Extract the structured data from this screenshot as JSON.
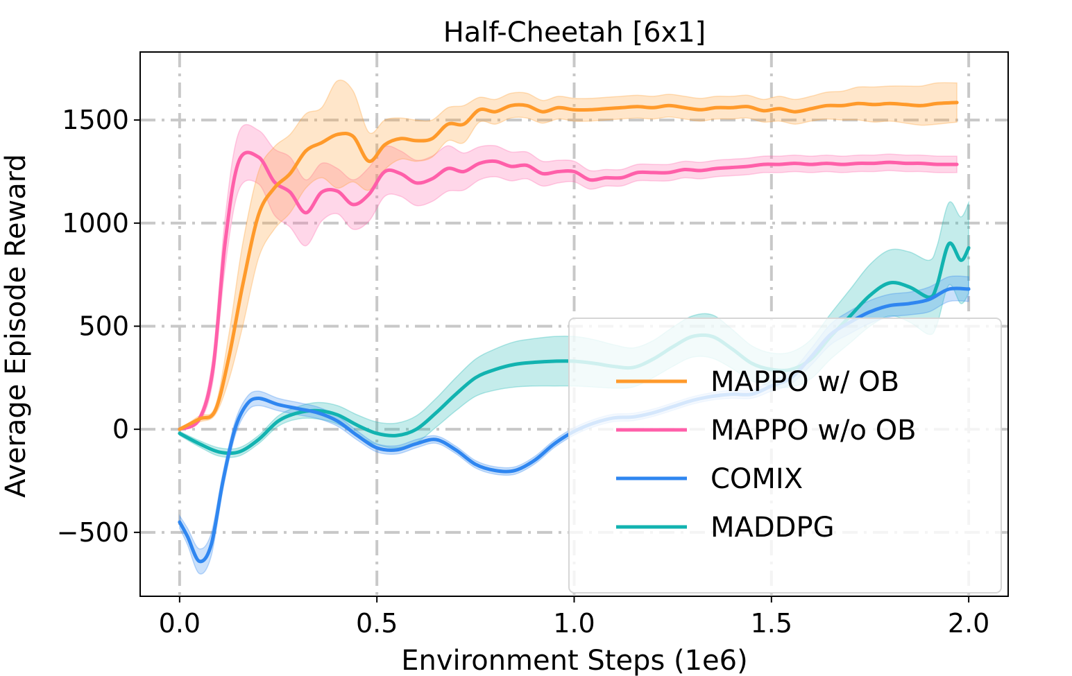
{
  "chart_data": {
    "type": "line",
    "title": "Half-Cheetah [6x1]",
    "xlabel": "Environment Steps (1e6)",
    "ylabel": "Average Episode Reward",
    "xlim": [
      -0.1,
      2.1
    ],
    "ylim": [
      -810,
      1830
    ],
    "xticks": [
      0.0,
      0.5,
      1.0,
      1.5,
      2.0
    ],
    "xtick_labels": [
      "0.0",
      "0.5",
      "1.0",
      "1.5",
      "2.0"
    ],
    "yticks": [
      -500,
      0,
      500,
      1000,
      1500
    ],
    "ytick_labels": [
      "−500",
      "0",
      "500",
      "1000",
      "1500"
    ],
    "grid": true,
    "legend_position": "lower right",
    "series": [
      {
        "name": "MAPPO w/ OB",
        "color": "#ff9a2b",
        "x": [
          0.0,
          0.05,
          0.09,
          0.125,
          0.16,
          0.2,
          0.24,
          0.28,
          0.32,
          0.36,
          0.4,
          0.44,
          0.48,
          0.52,
          0.56,
          0.6,
          0.64,
          0.68,
          0.72,
          0.76,
          0.8,
          0.84,
          0.88,
          0.92,
          0.96,
          1.0,
          1.04,
          1.08,
          1.12,
          1.16,
          1.2,
          1.24,
          1.28,
          1.32,
          1.36,
          1.4,
          1.44,
          1.48,
          1.52,
          1.56,
          1.6,
          1.64,
          1.68,
          1.72,
          1.76,
          1.8,
          1.84,
          1.88,
          1.92,
          1.97
        ],
        "y": [
          0,
          50,
          90,
          350,
          700,
          1040,
          1170,
          1240,
          1350,
          1390,
          1430,
          1420,
          1300,
          1380,
          1410,
          1400,
          1410,
          1480,
          1480,
          1550,
          1540,
          1570,
          1570,
          1540,
          1560,
          1550,
          1550,
          1555,
          1560,
          1565,
          1560,
          1570,
          1560,
          1550,
          1560,
          1560,
          1565,
          1545,
          1555,
          1540,
          1555,
          1570,
          1570,
          1580,
          1575,
          1580,
          1575,
          1570,
          1580,
          1585
        ],
        "band": [
          0,
          15,
          20,
          110,
          200,
          210,
          200,
          190,
          180,
          170,
          260,
          220,
          140,
          120,
          100,
          100,
          90,
          80,
          90,
          60,
          60,
          60,
          60,
          55,
          55,
          55,
          55,
          55,
          55,
          55,
          55,
          55,
          55,
          55,
          55,
          55,
          55,
          55,
          60,
          60,
          60,
          65,
          70,
          80,
          85,
          85,
          90,
          95,
          100,
          95
        ]
      },
      {
        "name": "MAPPO w/o OB",
        "color": "#ff5fa9",
        "x": [
          0.0,
          0.05,
          0.085,
          0.115,
          0.15,
          0.2,
          0.24,
          0.28,
          0.32,
          0.36,
          0.4,
          0.44,
          0.48,
          0.52,
          0.56,
          0.6,
          0.64,
          0.68,
          0.72,
          0.76,
          0.8,
          0.84,
          0.88,
          0.92,
          0.96,
          1.0,
          1.04,
          1.08,
          1.12,
          1.16,
          1.2,
          1.24,
          1.28,
          1.32,
          1.36,
          1.4,
          1.44,
          1.48,
          1.52,
          1.56,
          1.6,
          1.64,
          1.68,
          1.72,
          1.76,
          1.8,
          1.84,
          1.88,
          1.92,
          1.97
        ],
        "y": [
          0,
          50,
          300,
          900,
          1300,
          1320,
          1200,
          1150,
          1050,
          1150,
          1155,
          1090,
          1140,
          1250,
          1240,
          1195,
          1215,
          1265,
          1250,
          1290,
          1300,
          1275,
          1280,
          1240,
          1250,
          1250,
          1210,
          1220,
          1220,
          1245,
          1245,
          1245,
          1260,
          1255,
          1265,
          1270,
          1275,
          1285,
          1285,
          1290,
          1285,
          1290,
          1285,
          1290,
          1290,
          1295,
          1290,
          1290,
          1285,
          1285
        ],
        "band": [
          0,
          15,
          60,
          120,
          140,
          130,
          160,
          170,
          160,
          140,
          110,
          120,
          130,
          120,
          110,
          110,
          110,
          110,
          90,
          80,
          75,
          70,
          65,
          60,
          55,
          50,
          45,
          40,
          40,
          40,
          40,
          40,
          40,
          40,
          40,
          40,
          40,
          40,
          40,
          40,
          40,
          40,
          40,
          40,
          40,
          40,
          40,
          40,
          40,
          40
        ]
      },
      {
        "name": "COMIX",
        "color": "#2f86f0",
        "x": [
          0.0,
          0.02,
          0.05,
          0.08,
          0.11,
          0.14,
          0.17,
          0.2,
          0.25,
          0.3,
          0.35,
          0.4,
          0.45,
          0.5,
          0.55,
          0.6,
          0.65,
          0.7,
          0.75,
          0.8,
          0.85,
          0.9,
          0.95,
          1.0,
          1.05,
          1.1,
          1.15,
          1.2,
          1.25,
          1.3,
          1.35,
          1.4,
          1.45,
          1.5,
          1.55,
          1.6,
          1.65,
          1.7,
          1.75,
          1.8,
          1.85,
          1.9,
          1.95,
          2.0
        ],
        "y": [
          -450,
          -520,
          -640,
          -560,
          -250,
          0,
          120,
          150,
          120,
          100,
          80,
          40,
          -30,
          -90,
          -100,
          -70,
          -50,
          -100,
          -170,
          -200,
          -200,
          -150,
          -70,
          -10,
          30,
          55,
          60,
          80,
          110,
          140,
          160,
          170,
          170,
          210,
          250,
          350,
          460,
          520,
          570,
          600,
          610,
          630,
          680,
          680
        ],
        "band": [
          30,
          40,
          60,
          55,
          40,
          35,
          35,
          35,
          30,
          30,
          28,
          25,
          22,
          20,
          20,
          20,
          18,
          18,
          18,
          18,
          18,
          18,
          18,
          18,
          18,
          18,
          18,
          18,
          18,
          18,
          18,
          20,
          20,
          25,
          30,
          40,
          50,
          55,
          55,
          55,
          55,
          60,
          60,
          60
        ]
      },
      {
        "name": "MADDPG",
        "color": "#12b3b0",
        "x": [
          0.0,
          0.05,
          0.1,
          0.15,
          0.2,
          0.25,
          0.3,
          0.35,
          0.4,
          0.45,
          0.5,
          0.55,
          0.6,
          0.65,
          0.7,
          0.75,
          0.8,
          0.85,
          0.9,
          0.95,
          1.0,
          1.05,
          1.1,
          1.15,
          1.2,
          1.25,
          1.3,
          1.35,
          1.4,
          1.45,
          1.5,
          1.55,
          1.6,
          1.65,
          1.7,
          1.75,
          1.8,
          1.85,
          1.9,
          1.92,
          1.95,
          1.98,
          2.0
        ],
        "y": [
          -20,
          -70,
          -110,
          -110,
          -50,
          40,
          80,
          90,
          70,
          20,
          -20,
          -30,
          0,
          80,
          170,
          250,
          290,
          315,
          325,
          330,
          330,
          320,
          305,
          300,
          340,
          400,
          450,
          450,
          390,
          320,
          290,
          290,
          340,
          450,
          550,
          650,
          710,
          690,
          640,
          700,
          900,
          820,
          880
        ],
        "band": [
          10,
          15,
          20,
          20,
          20,
          25,
          30,
          40,
          45,
          50,
          55,
          60,
          65,
          70,
          80,
          90,
          100,
          110,
          115,
          120,
          120,
          115,
          105,
          95,
          90,
          95,
          100,
          105,
          95,
          85,
          80,
          85,
          95,
          110,
          130,
          150,
          160,
          170,
          180,
          190,
          200,
          210,
          220
        ]
      }
    ]
  }
}
